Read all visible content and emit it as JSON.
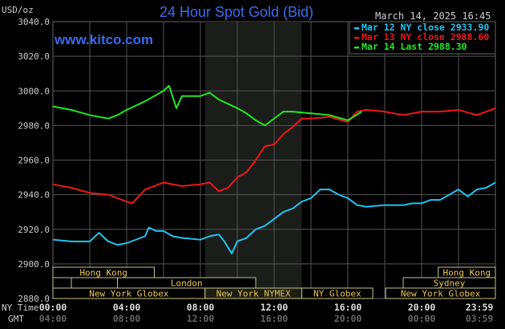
{
  "chart_data": {
    "type": "line",
    "title": "24 Hour Spot Gold (Bid)",
    "site": "www.kitco.com",
    "timestamp": "March 14, 2025 16:45",
    "ylabel": "USD/oz",
    "ylim": [
      2880,
      3040
    ],
    "yticks": [
      "3040.0",
      "3020.0",
      "3000.0",
      "2980.0",
      "2960.0",
      "2940.0",
      "2920.0",
      "2900.0",
      "2880.0"
    ],
    "xlim_hours": [
      0,
      24
    ],
    "grid": true,
    "legend_placement": "top-right",
    "x_row_labels": {
      "ny": "NY Time",
      "gmt": "GMT"
    },
    "xticks_ny": [
      "00:00",
      "04:00",
      "08:00",
      "12:00",
      "16:00",
      "20:00",
      "23:59"
    ],
    "xticks_gmt": [
      "04:00",
      "08:00",
      "12:00",
      "16:00",
      "20:00",
      "00:00",
      "03:59"
    ],
    "shaded_session_hours": [
      8.25,
      13.5
    ],
    "sessions": [
      {
        "label": "Hong Kong",
        "row": 0,
        "start": 0,
        "end": 5.5
      },
      {
        "label": "Hong Kong",
        "row": 0,
        "start": 20.9,
        "end": 24
      },
      {
        "label": "",
        "row": 1,
        "start": 0,
        "end": 1
      },
      {
        "label": "",
        "row": 1,
        "start": 1,
        "end": 3.5
      },
      {
        "label": "London",
        "row": 1,
        "start": 3.5,
        "end": 11
      },
      {
        "label": "Sydney",
        "row": 1,
        "start": 19.0,
        "end": 24
      },
      {
        "label": "New York Globex",
        "row": 2,
        "start": 0,
        "end": 8.25
      },
      {
        "label": "New York NYMEX",
        "row": 2,
        "start": 8.25,
        "end": 13.5
      },
      {
        "label": "NY Globex",
        "row": 2,
        "start": 13.5,
        "end": 17.35
      },
      {
        "label": "New York Globex",
        "row": 2,
        "start": 18.05,
        "end": 24
      }
    ],
    "series": [
      {
        "name": "Mar 12 NY close 2933.90",
        "color": "#22c4f0",
        "x": [
          0,
          1,
          2,
          2.5,
          3,
          3.5,
          4,
          5,
          5.2,
          5.6,
          6,
          6.5,
          7,
          8,
          8.5,
          9,
          9.3,
          9.7,
          10,
          10.5,
          11,
          11.5,
          12,
          12.5,
          13,
          13.5,
          14,
          14.5,
          15,
          15.5,
          16,
          16.5,
          17,
          18,
          19,
          19.5,
          20,
          20.5,
          21,
          21.5,
          22,
          22.5,
          23,
          23.5,
          24
        ],
        "y": [
          2914,
          2913,
          2913,
          2918,
          2913,
          2911,
          2912,
          2916,
          2921,
          2919,
          2919,
          2916,
          2915,
          2914,
          2916,
          2917,
          2913,
          2906,
          2913,
          2915,
          2920,
          2922,
          2926,
          2930,
          2932,
          2936,
          2938,
          2943,
          2943,
          2940,
          2938,
          2934,
          2933,
          2934,
          2934,
          2935,
          2935,
          2937,
          2937,
          2940,
          2943,
          2939,
          2943,
          2944,
          2947
        ]
      },
      {
        "name": "Mar 13 NY close 2988.60",
        "color": "#f01818",
        "x": [
          0,
          1,
          2,
          3,
          4,
          4.3,
          5,
          6,
          7,
          8,
          8.5,
          9,
          9.5,
          10,
          10.5,
          11,
          11.5,
          12,
          12.5,
          13,
          13.5,
          14,
          15,
          16,
          16.5,
          17,
          18,
          19,
          20,
          21,
          22,
          23,
          24
        ],
        "y": [
          2946,
          2944,
          2941,
          2940,
          2936,
          2935,
          2943,
          2947,
          2945,
          2946,
          2947,
          2942,
          2944,
          2950,
          2953,
          2960,
          2968,
          2969,
          2975,
          2979,
          2984,
          2984,
          2985,
          2982,
          2988,
          2989,
          2988,
          2986,
          2988,
          2988,
          2989,
          2986,
          2990
        ]
      },
      {
        "name": "Mar 14 Last 2988.30",
        "color": "#22e822",
        "x": [
          0,
          1,
          2,
          3,
          3.5,
          4,
          5,
          6,
          6.3,
          6.7,
          7,
          8,
          8.5,
          9,
          10,
          10.5,
          11,
          11.5,
          12,
          12.5,
          13,
          14,
          15,
          16,
          16.75
        ],
        "y": [
          2991,
          2989,
          2986,
          2984,
          2986,
          2989,
          2994,
          3000,
          3003,
          2990,
          2997,
          2997,
          2999,
          2995,
          2990,
          2987,
          2983,
          2980,
          2984,
          2988,
          2988,
          2987,
          2986,
          2983,
          2988
        ]
      }
    ]
  }
}
